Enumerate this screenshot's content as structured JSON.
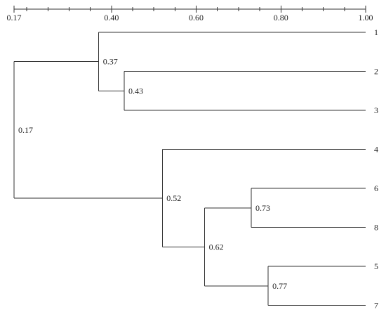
{
  "chart_data": {
    "type": "dendrogram",
    "axis": {
      "position": "top",
      "min": 0.17,
      "max": 1.0,
      "ticks": [
        {
          "value": 0.17,
          "label": "0.17"
        },
        {
          "value": 0.4,
          "label": "0.40"
        },
        {
          "value": 0.6,
          "label": "0.60"
        },
        {
          "value": 0.8,
          "label": "0.80"
        },
        {
          "value": 1.0,
          "label": "1.00"
        }
      ]
    },
    "leaves": [
      "1",
      "2",
      "3",
      "4",
      "6",
      "8",
      "5",
      "7"
    ],
    "merges": [
      {
        "id": "m43",
        "similarity": 0.43,
        "label": "0.43",
        "children": [
          "2",
          "3"
        ]
      },
      {
        "id": "m37",
        "similarity": 0.37,
        "label": "0.37",
        "children": [
          "1",
          "m43"
        ]
      },
      {
        "id": "m73",
        "similarity": 0.73,
        "label": "0.73",
        "children": [
          "6",
          "8"
        ]
      },
      {
        "id": "m77",
        "similarity": 0.77,
        "label": "0.77",
        "children": [
          "5",
          "7"
        ]
      },
      {
        "id": "m62",
        "similarity": 0.62,
        "label": "0.62",
        "children": [
          "m73",
          "m77"
        ]
      },
      {
        "id": "m52",
        "similarity": 0.52,
        "label": "0.52",
        "children": [
          "4",
          "m62"
        ]
      },
      {
        "id": "m17",
        "similarity": 0.17,
        "label": "0.17",
        "children": [
          "m37",
          "m52"
        ]
      }
    ],
    "colors": {
      "lines": "#333333",
      "text": "#222222"
    }
  }
}
